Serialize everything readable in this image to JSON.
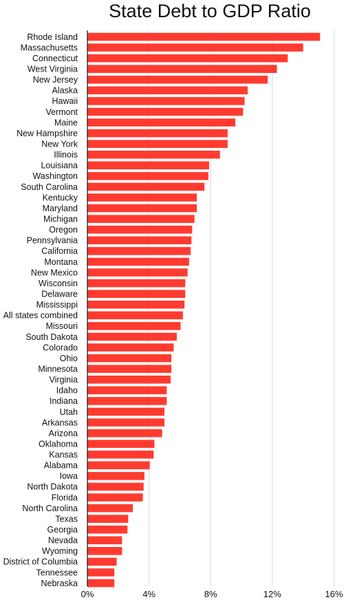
{
  "chart_data": {
    "type": "bar",
    "orientation": "horizontal",
    "title": "State Debt to GDP Ratio",
    "xlabel": "",
    "ylabel": "",
    "xlim": [
      0,
      16
    ],
    "x_ticks": [
      "0%",
      "4%",
      "8%",
      "12%",
      "16%"
    ],
    "grid": true,
    "bar_color": "#ff3b30",
    "categories": [
      "Rhode Island",
      "Massachusetts",
      "Connecticut",
      "West Virginia",
      "New Jersey",
      "Alaska",
      "Hawaii",
      "Vermont",
      "Maine",
      "New Hampshire",
      "New York",
      "Illinois",
      "Louisiana",
      "Washington",
      "South Carolina",
      "Kentucky",
      "Maryland",
      "Michigan",
      "Oregon",
      "Pennsylvania",
      "California",
      "Montana",
      "New Mexico",
      "Wisconsin",
      "Delaware",
      "Mississippi",
      "All states combined",
      "Missouri",
      "South Dakota",
      "Colorado",
      "Ohio",
      "Minnesota",
      "Virginia",
      "Idaho",
      "Indiana",
      "Utah",
      "Arkansas",
      "Arizona",
      "Oklahoma",
      "Kansas",
      "Alabama",
      "Iowa",
      "North Dakota",
      "Florida",
      "North Carolina",
      "Texas",
      "Georgia",
      "Nevada",
      "Wyoming",
      "District of Columbia",
      "Tennessee",
      "Nebraska"
    ],
    "values": [
      15.1,
      14.0,
      13.0,
      12.3,
      11.7,
      10.4,
      10.2,
      10.1,
      9.6,
      9.1,
      9.1,
      8.6,
      7.9,
      7.85,
      7.6,
      7.1,
      7.1,
      6.95,
      6.8,
      6.75,
      6.7,
      6.6,
      6.5,
      6.35,
      6.35,
      6.3,
      6.2,
      6.05,
      5.8,
      5.6,
      5.45,
      5.45,
      5.4,
      5.15,
      5.15,
      5.0,
      5.0,
      4.85,
      4.35,
      4.3,
      4.05,
      3.7,
      3.65,
      3.6,
      2.95,
      2.65,
      2.6,
      2.25,
      2.25,
      1.9,
      1.75,
      1.75
    ]
  }
}
